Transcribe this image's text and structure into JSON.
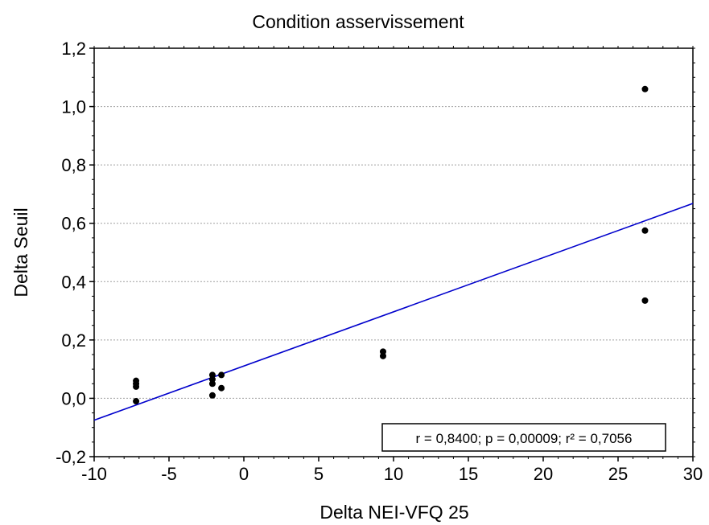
{
  "chart_data": {
    "type": "scatter",
    "title": "Condition asservissement",
    "xlabel": "Delta NEI-VFQ 25",
    "ylabel": "Delta Seuil",
    "xlim": [
      -10,
      30
    ],
    "ylim": [
      -0.2,
      1.2
    ],
    "x_ticks": [
      -10,
      -5,
      0,
      5,
      10,
      15,
      20,
      25,
      30
    ],
    "x_tick_labels": [
      "-10",
      "-5",
      "0",
      "5",
      "10",
      "15",
      "20",
      "25",
      "30"
    ],
    "y_ticks": [
      -0.2,
      0.0,
      0.2,
      0.4,
      0.6,
      0.8,
      1.0,
      1.2
    ],
    "y_tick_labels": [
      "-0,2",
      "0,0",
      "0,2",
      "0,4",
      "0,6",
      "0,8",
      "1,0",
      "1,2"
    ],
    "grid": "horizontal-dashed",
    "points": [
      {
        "x": -7.2,
        "y": 0.06
      },
      {
        "x": -7.2,
        "y": 0.05
      },
      {
        "x": -7.2,
        "y": 0.04
      },
      {
        "x": -7.2,
        "y": -0.01
      },
      {
        "x": -2.1,
        "y": 0.08
      },
      {
        "x": -2.1,
        "y": 0.065
      },
      {
        "x": -2.1,
        "y": 0.05
      },
      {
        "x": -2.1,
        "y": 0.01
      },
      {
        "x": -1.5,
        "y": 0.08
      },
      {
        "x": -1.5,
        "y": 0.035
      },
      {
        "x": 9.3,
        "y": 0.16
      },
      {
        "x": 9.3,
        "y": 0.145
      },
      {
        "x": 26.8,
        "y": 1.06
      },
      {
        "x": 26.8,
        "y": 0.575
      },
      {
        "x": 26.8,
        "y": 0.335
      }
    ],
    "regression_line": {
      "x": [
        -10,
        30
      ],
      "y": [
        -0.075,
        0.668
      ],
      "color": "#0000cc"
    },
    "annotation": "r = 0,8400; p = 0,00009; r² = 0,7056",
    "annotation_placement": "bottom-right",
    "point_color": "#000000"
  }
}
